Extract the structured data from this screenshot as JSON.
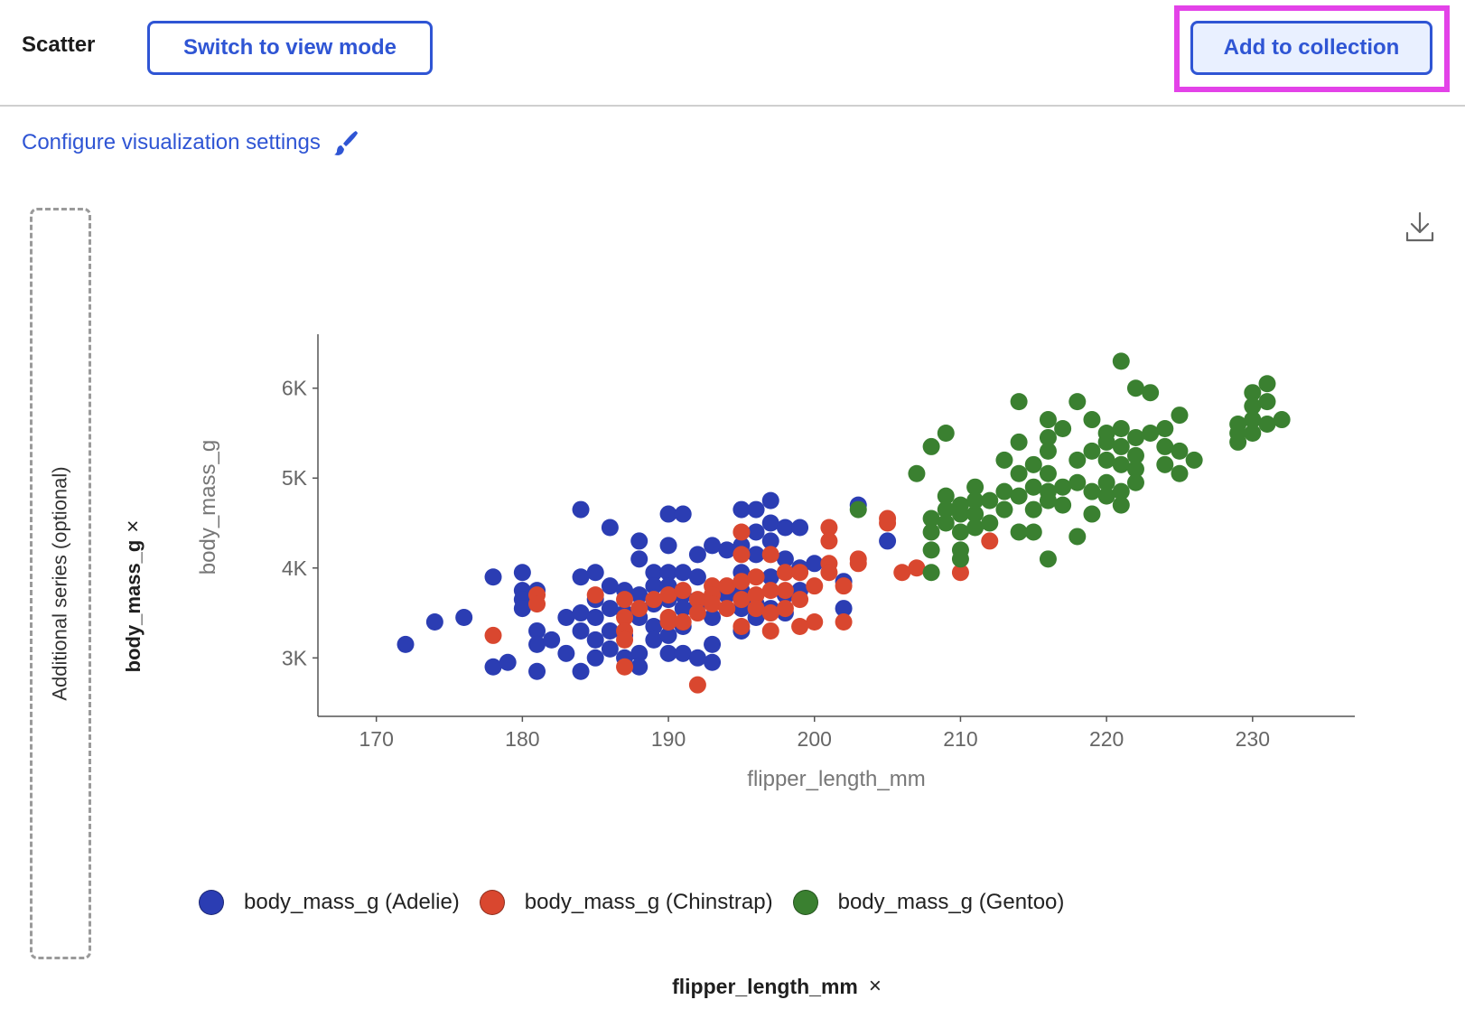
{
  "header": {
    "title": "Scatter",
    "switch_label": "Switch to view mode",
    "add_label": "Add to collection"
  },
  "config_label": "Configure visualization settings",
  "dropzone_label": "Additional series (optional)",
  "y_field": {
    "label": "body_mass_g",
    "remove": "×"
  },
  "x_field": {
    "label": "flipper_length_mm",
    "remove": "×"
  },
  "colors": {
    "accent": "#2f55d4",
    "highlight": "#e342e8",
    "adelie": "#2b3db3",
    "chinstrap": "#d9472f",
    "gentoo": "#3a8030"
  },
  "chart_data": {
    "type": "scatter",
    "xlabel": "flipper_length_mm",
    "ylabel": "body_mass_g",
    "xlim": [
      166,
      237
    ],
    "ylim": [
      2350,
      6600
    ],
    "x_ticks": [
      170,
      180,
      190,
      200,
      210,
      220,
      230
    ],
    "y_ticks": [
      3000,
      4000,
      5000,
      6000
    ],
    "y_tick_labels": [
      "3K",
      "4K",
      "5K",
      "6K"
    ],
    "legend_position": "bottom",
    "series": [
      {
        "name": "body_mass_g (Adelie)",
        "color": "#2b3db3",
        "points": [
          [
            172,
            3150
          ],
          [
            174,
            3400
          ],
          [
            176,
            3450
          ],
          [
            178,
            3900
          ],
          [
            178,
            2900
          ],
          [
            179,
            2950
          ],
          [
            180,
            3950
          ],
          [
            180,
            3750
          ],
          [
            180,
            3650
          ],
          [
            180,
            3550
          ],
          [
            181,
            3300
          ],
          [
            181,
            3150
          ],
          [
            181,
            2850
          ],
          [
            181,
            3750
          ],
          [
            182,
            3200
          ],
          [
            183,
            3450
          ],
          [
            183,
            3050
          ],
          [
            184,
            4650
          ],
          [
            184,
            3900
          ],
          [
            184,
            3500
          ],
          [
            184,
            3300
          ],
          [
            184,
            2850
          ],
          [
            185,
            3950
          ],
          [
            185,
            3650
          ],
          [
            185,
            3450
          ],
          [
            185,
            3200
          ],
          [
            185,
            3000
          ],
          [
            186,
            4450
          ],
          [
            186,
            3800
          ],
          [
            186,
            3550
          ],
          [
            186,
            3300
          ],
          [
            186,
            3100
          ],
          [
            187,
            3750
          ],
          [
            187,
            3500
          ],
          [
            187,
            3250
          ],
          [
            187,
            3000
          ],
          [
            188,
            4300
          ],
          [
            188,
            4100
          ],
          [
            188,
            3700
          ],
          [
            188,
            3450
          ],
          [
            188,
            3050
          ],
          [
            188,
            2900
          ],
          [
            189,
            3950
          ],
          [
            189,
            3800
          ],
          [
            189,
            3600
          ],
          [
            189,
            3350
          ],
          [
            189,
            3200
          ],
          [
            190,
            4600
          ],
          [
            190,
            4250
          ],
          [
            190,
            3950
          ],
          [
            190,
            3800
          ],
          [
            190,
            3650
          ],
          [
            190,
            3400
          ],
          [
            190,
            3250
          ],
          [
            190,
            3050
          ],
          [
            191,
            4600
          ],
          [
            191,
            3950
          ],
          [
            191,
            3700
          ],
          [
            191,
            3550
          ],
          [
            191,
            3350
          ],
          [
            191,
            3050
          ],
          [
            192,
            4150
          ],
          [
            192,
            3900
          ],
          [
            192,
            3600
          ],
          [
            192,
            3000
          ],
          [
            193,
            4250
          ],
          [
            193,
            3450
          ],
          [
            193,
            3150
          ],
          [
            193,
            2950
          ],
          [
            194,
            4200
          ],
          [
            194,
            3700
          ],
          [
            195,
            4650
          ],
          [
            195,
            4250
          ],
          [
            195,
            3950
          ],
          [
            195,
            3750
          ],
          [
            195,
            3550
          ],
          [
            195,
            3300
          ],
          [
            196,
            4650
          ],
          [
            196,
            4400
          ],
          [
            196,
            4150
          ],
          [
            196,
            3600
          ],
          [
            196,
            3450
          ],
          [
            197,
            4750
          ],
          [
            197,
            4500
          ],
          [
            197,
            4300
          ],
          [
            197,
            3900
          ],
          [
            197,
            3550
          ],
          [
            198,
            4450
          ],
          [
            198,
            4100
          ],
          [
            198,
            3700
          ],
          [
            198,
            3500
          ],
          [
            199,
            4450
          ],
          [
            199,
            4000
          ],
          [
            199,
            3750
          ],
          [
            200,
            4050
          ],
          [
            202,
            3850
          ],
          [
            202,
            3550
          ],
          [
            203,
            4700
          ],
          [
            205,
            4300
          ]
        ]
      },
      {
        "name": "body_mass_g (Chinstrap)",
        "color": "#d9472f",
        "points": [
          [
            178,
            3250
          ],
          [
            181,
            3700
          ],
          [
            181,
            3600
          ],
          [
            185,
            3700
          ],
          [
            187,
            3650
          ],
          [
            187,
            3450
          ],
          [
            187,
            3300
          ],
          [
            187,
            3200
          ],
          [
            187,
            2900
          ],
          [
            188,
            3550
          ],
          [
            189,
            3650
          ],
          [
            190,
            3700
          ],
          [
            190,
            3450
          ],
          [
            190,
            3400
          ],
          [
            191,
            3750
          ],
          [
            191,
            3400
          ],
          [
            192,
            3650
          ],
          [
            192,
            3500
          ],
          [
            193,
            3800
          ],
          [
            193,
            3700
          ],
          [
            193,
            3600
          ],
          [
            194,
            3800
          ],
          [
            194,
            3550
          ],
          [
            195,
            4400
          ],
          [
            195,
            4150
          ],
          [
            195,
            3850
          ],
          [
            195,
            3650
          ],
          [
            195,
            3350
          ],
          [
            196,
            3900
          ],
          [
            196,
            3700
          ],
          [
            196,
            3550
          ],
          [
            197,
            4150
          ],
          [
            197,
            3750
          ],
          [
            197,
            3500
          ],
          [
            197,
            3300
          ],
          [
            198,
            3950
          ],
          [
            198,
            3750
          ],
          [
            198,
            3550
          ],
          [
            199,
            3950
          ],
          [
            199,
            3650
          ],
          [
            199,
            3350
          ],
          [
            200,
            3800
          ],
          [
            200,
            3400
          ],
          [
            201,
            4450
          ],
          [
            201,
            4300
          ],
          [
            201,
            4050
          ],
          [
            201,
            3950
          ],
          [
            202,
            3800
          ],
          [
            202,
            3400
          ],
          [
            203,
            4100
          ],
          [
            203,
            4050
          ],
          [
            205,
            4550
          ],
          [
            205,
            4500
          ],
          [
            206,
            3950
          ],
          [
            207,
            4000
          ],
          [
            210,
            3950
          ],
          [
            212,
            4300
          ],
          [
            192,
            2700
          ]
        ]
      },
      {
        "name": "body_mass_g (Gentoo)",
        "color": "#3a8030",
        "points": [
          [
            203,
            4650
          ],
          [
            207,
            5050
          ],
          [
            208,
            5350
          ],
          [
            208,
            4550
          ],
          [
            208,
            4400
          ],
          [
            208,
            4200
          ],
          [
            208,
            3950
          ],
          [
            209,
            5500
          ],
          [
            209,
            4800
          ],
          [
            209,
            4650
          ],
          [
            209,
            4500
          ],
          [
            210,
            4700
          ],
          [
            210,
            4600
          ],
          [
            210,
            4400
          ],
          [
            210,
            4200
          ],
          [
            210,
            4100
          ],
          [
            211,
            4900
          ],
          [
            211,
            4750
          ],
          [
            211,
            4600
          ],
          [
            211,
            4450
          ],
          [
            212,
            4750
          ],
          [
            212,
            4500
          ],
          [
            213,
            5200
          ],
          [
            213,
            4850
          ],
          [
            213,
            4650
          ],
          [
            214,
            5850
          ],
          [
            214,
            5400
          ],
          [
            214,
            5050
          ],
          [
            214,
            4800
          ],
          [
            214,
            4400
          ],
          [
            215,
            5150
          ],
          [
            215,
            4900
          ],
          [
            215,
            4650
          ],
          [
            215,
            4400
          ],
          [
            216,
            5650
          ],
          [
            216,
            5450
          ],
          [
            216,
            5300
          ],
          [
            216,
            5050
          ],
          [
            216,
            4850
          ],
          [
            216,
            4750
          ],
          [
            216,
            4100
          ],
          [
            217,
            5550
          ],
          [
            217,
            4900
          ],
          [
            217,
            4700
          ],
          [
            218,
            5850
          ],
          [
            218,
            5200
          ],
          [
            218,
            4950
          ],
          [
            218,
            4350
          ],
          [
            219,
            5650
          ],
          [
            219,
            5300
          ],
          [
            219,
            4850
          ],
          [
            219,
            4600
          ],
          [
            220,
            5500
          ],
          [
            220,
            5400
          ],
          [
            220,
            5200
          ],
          [
            220,
            4950
          ],
          [
            220,
            4800
          ],
          [
            221,
            6300
          ],
          [
            221,
            5550
          ],
          [
            221,
            5350
          ],
          [
            221,
            5150
          ],
          [
            221,
            4850
          ],
          [
            221,
            4700
          ],
          [
            222,
            6000
          ],
          [
            222,
            5450
          ],
          [
            222,
            5250
          ],
          [
            222,
            5100
          ],
          [
            222,
            4950
          ],
          [
            223,
            5950
          ],
          [
            223,
            5500
          ],
          [
            224,
            5550
          ],
          [
            224,
            5350
          ],
          [
            224,
            5150
          ],
          [
            225,
            5700
          ],
          [
            225,
            5300
          ],
          [
            225,
            5050
          ],
          [
            226,
            5200
          ],
          [
            229,
            5600
          ],
          [
            229,
            5500
          ],
          [
            229,
            5400
          ],
          [
            230,
            5950
          ],
          [
            230,
            5800
          ],
          [
            230,
            5650
          ],
          [
            230,
            5500
          ],
          [
            231,
            6050
          ],
          [
            231,
            5850
          ],
          [
            231,
            5600
          ],
          [
            232,
            5650
          ]
        ]
      }
    ]
  }
}
